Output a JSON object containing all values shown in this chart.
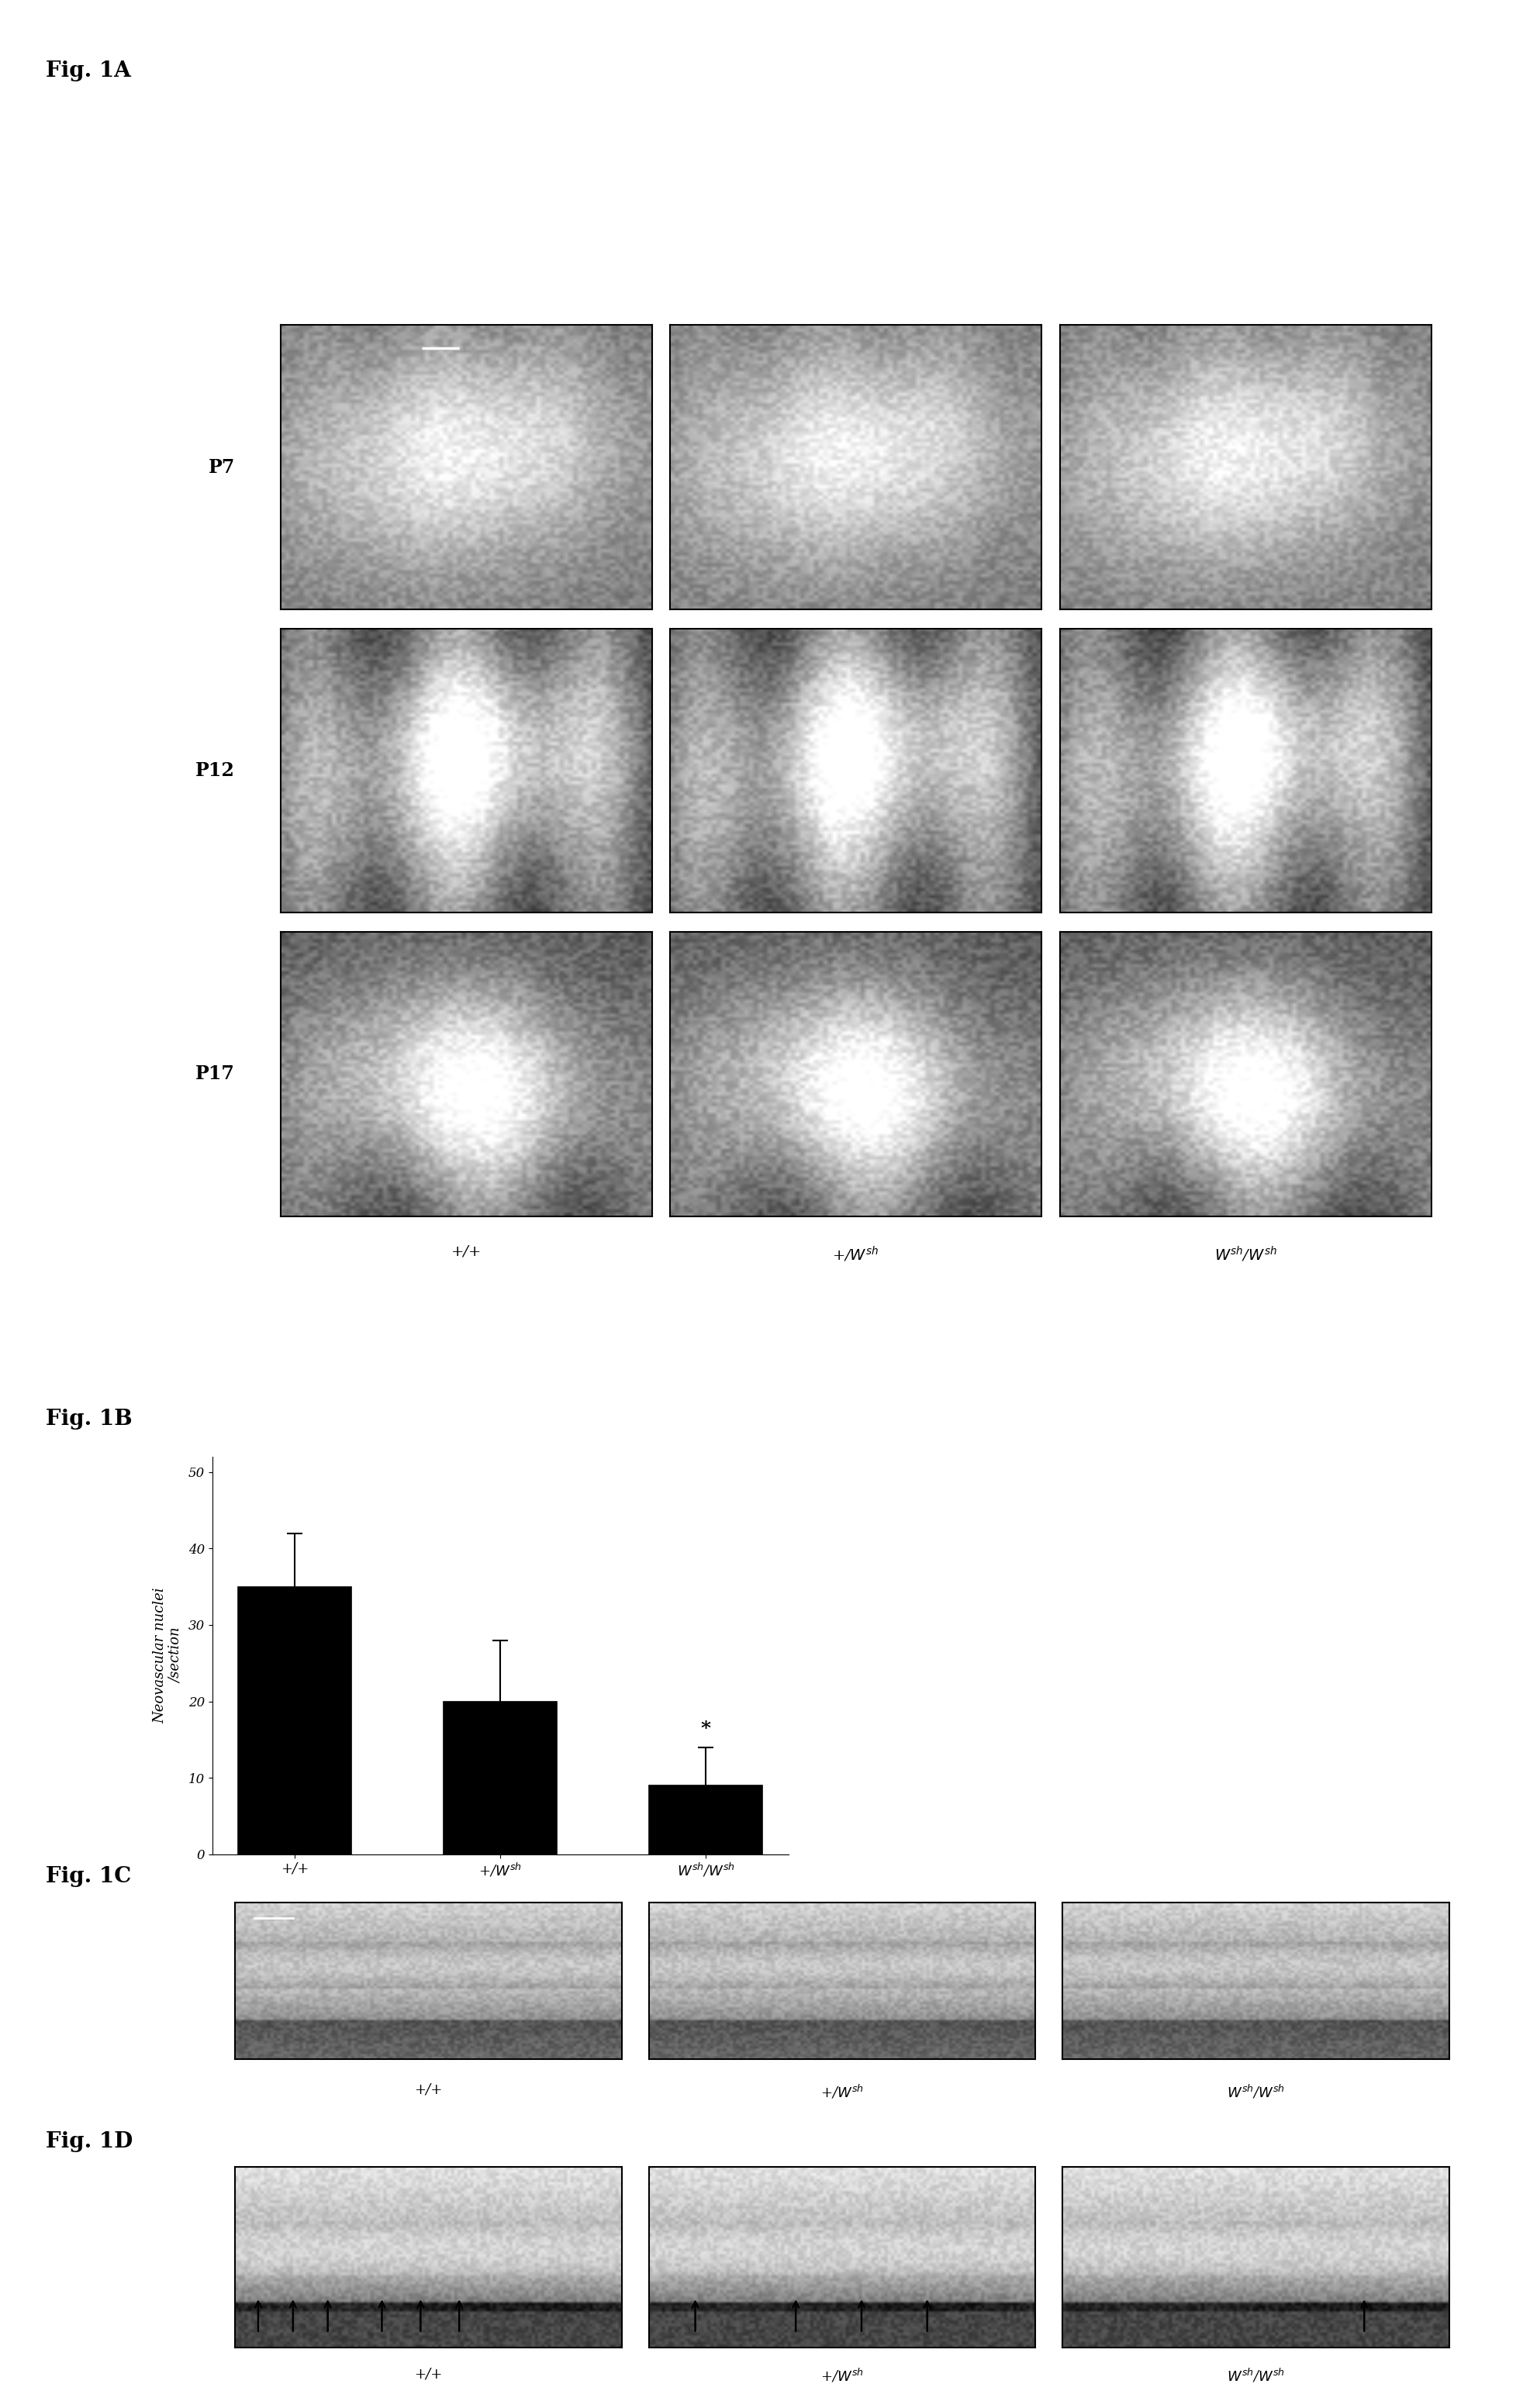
{
  "fig_label_fontsize": 20,
  "fig_label_style": "bold",
  "fig_label_font": "serif",
  "panel_A_label": "Fig. 1A",
  "panel_A_row_labels": [
    "P7",
    "P12",
    "P17"
  ],
  "panel_A_col_labels": [
    "+/+",
    "+/$W^{sh}$",
    "$W^{sh}$/$W^{sh}$"
  ],
  "panel_B_label": "Fig. 1B",
  "panel_B_values": [
    35,
    20,
    9
  ],
  "panel_B_errors": [
    7,
    8,
    5
  ],
  "panel_B_ylabel": "Neovascular nuclei\n/section",
  "panel_B_xlabels": [
    "+/+",
    "+/$W^{sh}$",
    "$W^{sh}$/$W^{sh}$"
  ],
  "panel_B_yticks": [
    0,
    10,
    20,
    30,
    40,
    50
  ],
  "panel_B_ylim": [
    0,
    52
  ],
  "panel_B_bar_color": "#000000",
  "panel_B_star_label": "*",
  "panel_C_label": "Fig. 1C",
  "panel_C_col_labels": [
    "+/+",
    "+/$W^{sh}$",
    "$W^{sh}$/$W^{sh}$"
  ],
  "panel_D_label": "Fig. 1D",
  "panel_D_col_labels": [
    "+/+",
    "+/$W^{sh}$",
    "$W^{sh}$/$W^{sh}$"
  ],
  "bg_color": "#ffffff"
}
